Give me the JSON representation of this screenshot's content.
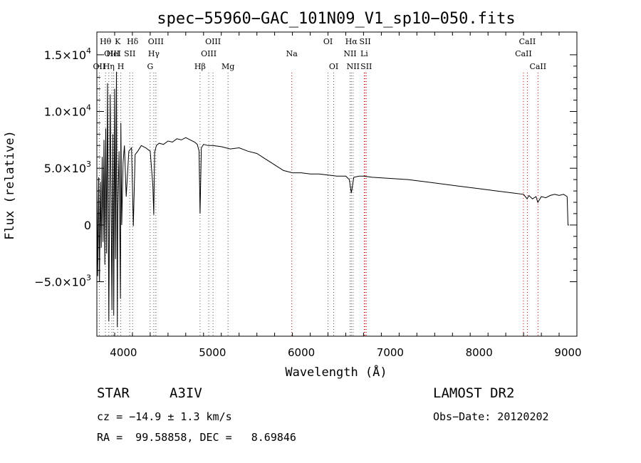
{
  "chart_data": {
    "type": "line",
    "title": "spec−55960−GAC_101N09_V1_sp10−050.fits",
    "xlabel": "Wavelength (Å)",
    "ylabel": "Flux (relative)",
    "xlim": [
      3700,
      9100
    ],
    "ylim": [
      -9800,
      17000
    ],
    "xticks": [
      {
        "value": 4000,
        "label": "4000"
      },
      {
        "value": 5000,
        "label": "5000"
      },
      {
        "value": 6000,
        "label": "6000"
      },
      {
        "value": 7000,
        "label": "7000"
      },
      {
        "value": 8000,
        "label": "8000"
      },
      {
        "value": 9000,
        "label": "9000"
      }
    ],
    "yticks": [
      {
        "value": -5000,
        "mant": "−5.0×10",
        "exp": "3"
      },
      {
        "value": 0,
        "mant": "0",
        "exp": ""
      },
      {
        "value": 5000,
        "mant": "5.0×10",
        "exp": "3"
      },
      {
        "value": 10000,
        "mant": "1.0×10",
        "exp": "4"
      },
      {
        "value": 15000,
        "mant": "1.5×10",
        "exp": "4"
      }
    ],
    "series": [
      {
        "x": [
          3700,
          3710,
          3720,
          3730,
          3740,
          3750,
          3760,
          3770,
          3780,
          3790,
          3800,
          3810,
          3820,
          3835,
          3850,
          3870,
          3880,
          3890,
          3900,
          3910,
          3920,
          3930,
          3935,
          3950,
          3965,
          3970,
          3980,
          3995,
          4010,
          4030,
          4060,
          4090,
          4101,
          4110,
          4130,
          4160,
          4200,
          4250,
          4300,
          4330,
          4340,
          4350,
          4370,
          4400,
          4450,
          4500,
          4550,
          4600,
          4650,
          4700,
          4750,
          4800,
          4830,
          4850,
          4861,
          4875,
          4900,
          4950,
          5000,
          5100,
          5200,
          5300,
          5400,
          5500,
          5600,
          5700,
          5800,
          5850,
          5900,
          6000,
          6100,
          6200,
          6300,
          6400,
          6500,
          6540,
          6563,
          6590,
          6650,
          6700,
          6800,
          7000,
          7200,
          7400,
          7600,
          7800,
          8000,
          8200,
          8400,
          8500,
          8540,
          8560,
          8600,
          8640,
          8660,
          8700,
          8750,
          8800,
          8850,
          8900,
          8950,
          8990,
          9000,
          9010
        ],
        "y": [
          4000,
          -4500,
          4200,
          -5000,
          3800,
          -2000,
          6000,
          -1500,
          7500,
          -3500,
          8500,
          -2500,
          12500,
          -8500,
          11500,
          -7500,
          8000,
          -8000,
          12000,
          -3000,
          13500,
          -9000,
          1000,
          6500,
          -6500,
          9000,
          0,
          5500,
          7000,
          2500,
          6500,
          6800,
          3000,
          -100,
          6200,
          6500,
          7000,
          6800,
          6500,
          3500,
          900,
          6400,
          7000,
          7200,
          7100,
          7400,
          7300,
          7600,
          7500,
          7700,
          7500,
          7300,
          7100,
          6500,
          1000,
          6800,
          7100,
          7000,
          7000,
          6900,
          6700,
          6800,
          6500,
          6300,
          5800,
          5300,
          4800,
          4700,
          4600,
          4600,
          4500,
          4500,
          4400,
          4300,
          4300,
          4000,
          2800,
          4200,
          4300,
          4300,
          4200,
          4100,
          4000,
          3800,
          3600,
          3400,
          3200,
          3000,
          2800,
          2700,
          2300,
          2600,
          2300,
          2500,
          2000,
          2500,
          2400,
          2600,
          2700,
          2600,
          2700,
          2500,
          0,
          0
        ]
      }
    ],
    "line_marks": [
      {
        "label": "Hθ",
        "x": 3798,
        "row": 0
      },
      {
        "label": "K",
        "x": 3934,
        "row": 0
      },
      {
        "label": "Hδ",
        "x": 4102,
        "row": 0
      },
      {
        "label": "OIII",
        "x": 4363,
        "row": 0
      },
      {
        "label": "OIII",
        "x": 5007,
        "row": 0
      },
      {
        "label": "OI",
        "x": 6300,
        "row": 0
      },
      {
        "label": "Hα",
        "x": 6563,
        "row": 0
      },
      {
        "label": "SII",
        "x": 6717,
        "row": 0
      },
      {
        "label": "CaII",
        "x": 8542,
        "row": 0
      },
      {
        "label": "OIII",
        "x": 3869,
        "row": 1
      },
      {
        "label": "HeI",
        "x": 3889,
        "row": 1
      },
      {
        "label": "SII",
        "x": 4070,
        "row": 1
      },
      {
        "label": "Hγ",
        "x": 4340,
        "row": 1
      },
      {
        "label": "OIII",
        "x": 4959,
        "row": 1
      },
      {
        "label": "Na",
        "x": 5893,
        "row": 1
      },
      {
        "label": "NII",
        "x": 6548,
        "row": 1
      },
      {
        "label": "Li",
        "x": 6708,
        "row": 1
      },
      {
        "label": "CaII",
        "x": 8498,
        "row": 1
      },
      {
        "label": "OII",
        "x": 3727,
        "row": 2
      },
      {
        "label": "Hη",
        "x": 3835,
        "row": 2
      },
      {
        "label": "H",
        "x": 3969,
        "row": 2
      },
      {
        "label": "G",
        "x": 4300,
        "row": 2
      },
      {
        "label": "Hβ",
        "x": 4861,
        "row": 2
      },
      {
        "label": "Mg",
        "x": 5175,
        "row": 2
      },
      {
        "label": "OI",
        "x": 6364,
        "row": 2
      },
      {
        "label": "NII",
        "x": 6583,
        "row": 2
      },
      {
        "label": "SII",
        "x": 6731,
        "row": 2
      },
      {
        "label": "CaII",
        "x": 8662,
        "row": 2
      }
    ]
  },
  "info": {
    "class": "STAR",
    "subclass": "A3IV",
    "survey": "LAMOST DR2",
    "cz": "cz = −14.9 ± 1.3 km/s",
    "obs_date": "Obs−Date: 20120202",
    "radec": "RA =  99.58858, DEC =   8.69846"
  }
}
